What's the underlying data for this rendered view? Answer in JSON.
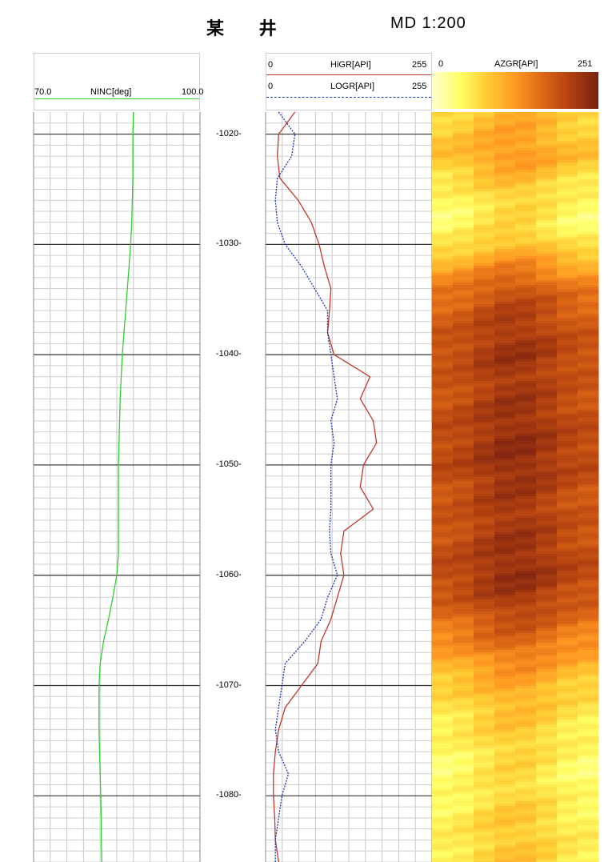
{
  "header": {
    "well_name": "某 井",
    "scale": "MD 1:200"
  },
  "tracks": {
    "ninc": {
      "curve_name": "NINC[deg]",
      "min_label": "70.0",
      "max_label": "100.0",
      "color": "#33cc33"
    },
    "hi_gr": {
      "curve_name": "HiGR[API]",
      "min_label": "0",
      "max_label": "255",
      "color": "#c0392b"
    },
    "lo_gr": {
      "curve_name": "LOGR[API]",
      "min_label": "0",
      "max_label": "255",
      "color": "#2233aa"
    },
    "azgr": {
      "curve_name": "AZGR[API]",
      "min_label": "0",
      "max_label": "251",
      "colormap": [
        "#ffffd0",
        "#ffff66",
        "#ffcc33",
        "#ff9922",
        "#dd6615",
        "#b04010",
        "#7a2010"
      ]
    }
  },
  "depth_labels": [
    "-1020-",
    "-1030-",
    "-1040-",
    "-1050-",
    "-1060-",
    "-1070-",
    "-1080-"
  ],
  "chart_data": {
    "type": "line",
    "depth": [
      -1018,
      -1020,
      -1022,
      -1024,
      -1026,
      -1028,
      -1030,
      -1032,
      -1034,
      -1036,
      -1038,
      -1040,
      -1042,
      -1044,
      -1046,
      -1048,
      -1050,
      -1052,
      -1054,
      -1056,
      -1058,
      -1060,
      -1062,
      -1064,
      -1066,
      -1068,
      -1070,
      -1072,
      -1074,
      -1076,
      -1078,
      -1080,
      -1082,
      -1084,
      -1086
    ],
    "series": [
      {
        "name": "NINC[deg]",
        "xlim": [
          70,
          100
        ],
        "values": [
          88.0,
          87.9,
          87.9,
          87.9,
          87.8,
          87.7,
          87.5,
          87.2,
          86.9,
          86.6,
          86.3,
          86.0,
          85.8,
          85.6,
          85.5,
          85.4,
          85.3,
          85.3,
          85.3,
          85.3,
          85.3,
          85.0,
          84.3,
          83.5,
          82.6,
          82.0,
          81.8,
          81.8,
          81.8,
          81.9,
          82.0,
          82.1,
          82.2,
          82.2,
          82.3
        ]
      },
      {
        "name": "HiGR[API]",
        "xlim": [
          0,
          255
        ],
        "values": [
          45,
          20,
          18,
          22,
          50,
          70,
          82,
          90,
          100,
          98,
          95,
          105,
          160,
          145,
          165,
          170,
          150,
          145,
          165,
          120,
          115,
          120,
          110,
          100,
          85,
          80,
          55,
          30,
          20,
          15,
          12,
          12,
          14,
          15,
          20
        ]
      },
      {
        "name": "LOGR[API]",
        "xlim": [
          0,
          255
        ],
        "values": [
          20,
          45,
          40,
          18,
          15,
          18,
          30,
          55,
          75,
          95,
          95,
          100,
          105,
          110,
          100,
          105,
          100,
          100,
          100,
          98,
          100,
          110,
          95,
          85,
          60,
          30,
          25,
          20,
          15,
          20,
          35,
          25,
          20,
          15,
          15
        ]
      },
      {
        "name": "AZGR[API]",
        "xlim": [
          0,
          251
        ],
        "values": [
          90,
          100,
          110,
          80,
          60,
          55,
          80,
          130,
          170,
          190,
          200,
          210,
          200,
          205,
          210,
          215,
          215,
          205,
          200,
          205,
          210,
          215,
          200,
          175,
          150,
          120,
          95,
          80,
          70,
          60,
          55,
          60,
          70,
          70,
          75
        ]
      }
    ],
    "ylim": [
      -1086,
      -1018
    ]
  }
}
